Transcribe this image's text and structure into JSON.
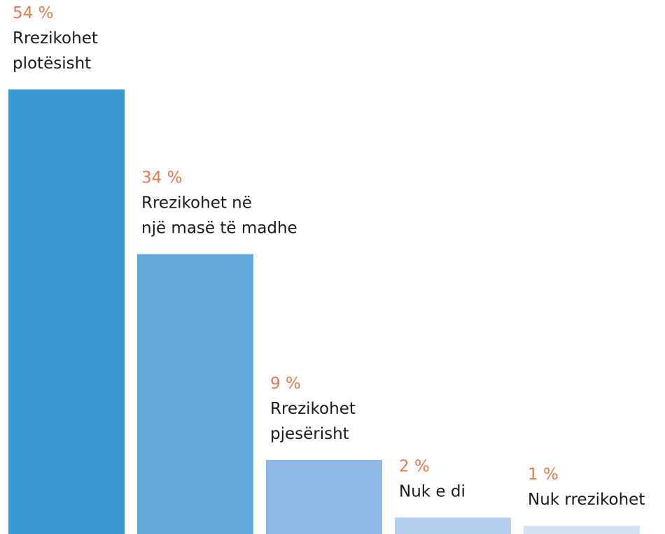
{
  "chart_data": {
    "type": "bar",
    "categories": [
      "Rrezikohet\nplotësisht",
      "Rrezikohet në\nnjë masë të madhe",
      "Rrezikohet\npjesërisht",
      "Nuk e di",
      "Nuk rrezikohet"
    ],
    "values": [
      54,
      34,
      9,
      2,
      1
    ],
    "value_labels": [
      "54 %",
      "34 %",
      "9 %",
      "2 %",
      "1 %"
    ],
    "colors": [
      "#3a98d4",
      "#64a7da",
      "#8db8e3",
      "#b5d0ee",
      "#d3e2f3"
    ],
    "label_color": "#ea7a4c"
  }
}
